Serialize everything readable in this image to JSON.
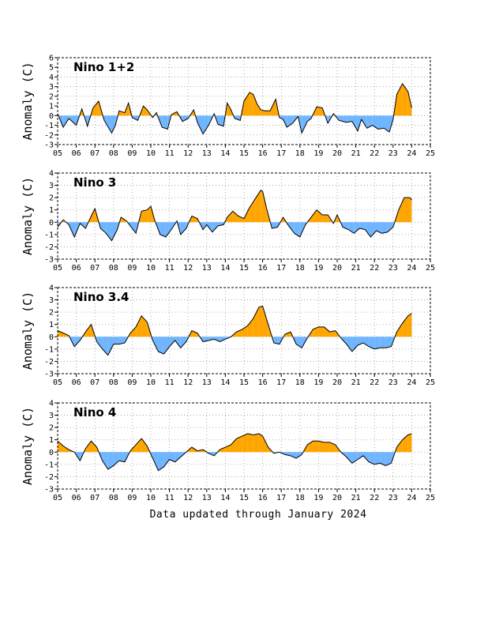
{
  "footer": "Data updated through January 2024",
  "colors": {
    "positive": "#ffa500",
    "negative": "#6fb5ff",
    "line": "#000000",
    "grid": "#999999"
  },
  "chart_data": [
    {
      "type": "area",
      "title": "Nino 1+2",
      "ylabel": "Anomaly (C)",
      "ylim": [
        -3,
        6
      ],
      "yticks": [
        "-3",
        "-2",
        "-1",
        "0",
        "1",
        "2",
        "3",
        "4",
        "5",
        "6"
      ],
      "xlim": [
        2005,
        2025
      ],
      "xticks": [
        "05",
        "06",
        "07",
        "08",
        "09",
        "10",
        "11",
        "12",
        "13",
        "14",
        "15",
        "16",
        "17",
        "18",
        "19",
        "20",
        "21",
        "22",
        "23",
        "24",
        "25"
      ],
      "x": [
        2005.0,
        2005.3,
        2005.6,
        2006.0,
        2006.3,
        2006.6,
        2006.9,
        2007.2,
        2007.5,
        2007.9,
        2008.1,
        2008.3,
        2008.6,
        2008.8,
        2009.0,
        2009.3,
        2009.6,
        2009.8,
        2010.1,
        2010.3,
        2010.6,
        2010.9,
        2011.1,
        2011.4,
        2011.7,
        2012.0,
        2012.3,
        2012.5,
        2012.8,
        2013.1,
        2013.4,
        2013.6,
        2013.9,
        2014.1,
        2014.3,
        2014.5,
        2014.8,
        2015.0,
        2015.3,
        2015.5,
        2015.7,
        2015.9,
        2016.1,
        2016.4,
        2016.7,
        2016.9,
        2017.1,
        2017.3,
        2017.6,
        2017.9,
        2018.1,
        2018.4,
        2018.6,
        2018.9,
        2019.2,
        2019.5,
        2019.8,
        2020.1,
        2020.3,
        2020.5,
        2020.8,
        2021.1,
        2021.3,
        2021.6,
        2021.9,
        2022.2,
        2022.5,
        2022.8,
        2023.0,
        2023.2,
        2023.5,
        2023.8,
        2024.0
      ],
      "values": [
        0.2,
        -1.2,
        -0.3,
        -1.0,
        0.7,
        -1.1,
        0.8,
        1.5,
        -0.5,
        -1.8,
        -1.0,
        0.5,
        0.3,
        1.3,
        -0.2,
        -0.5,
        1.0,
        0.6,
        -0.2,
        0.3,
        -1.2,
        -1.4,
        0.1,
        0.4,
        -0.6,
        -0.3,
        0.6,
        -0.7,
        -1.9,
        -1.0,
        0.2,
        -0.9,
        -1.1,
        1.3,
        0.6,
        -0.3,
        -0.5,
        1.5,
        2.4,
        2.2,
        1.2,
        0.6,
        0.5,
        0.5,
        1.7,
        -0.2,
        -0.4,
        -1.2,
        -0.8,
        -0.1,
        -1.8,
        -0.6,
        -0.3,
        0.9,
        0.8,
        -0.8,
        0.2,
        -0.5,
        -0.6,
        -0.7,
        -0.6,
        -1.6,
        -0.4,
        -1.3,
        -1.0,
        -1.4,
        -1.3,
        -1.7,
        -0.4,
        2.2,
        3.3,
        2.5,
        0.8
      ]
    },
    {
      "type": "area",
      "title": "Nino 3",
      "ylabel": "Anomaly (C)",
      "ylim": [
        -3,
        4
      ],
      "yticks": [
        "-3",
        "-2",
        "-1",
        "0",
        "1",
        "2",
        "3",
        "4"
      ],
      "xlim": [
        2005,
        2025
      ],
      "xticks": [
        "05",
        "06",
        "07",
        "08",
        "09",
        "10",
        "11",
        "12",
        "13",
        "14",
        "15",
        "16",
        "17",
        "18",
        "19",
        "20",
        "21",
        "22",
        "23",
        "24",
        "25"
      ],
      "x": [
        2005.0,
        2005.3,
        2005.6,
        2005.9,
        2006.2,
        2006.5,
        2006.8,
        2007.0,
        2007.3,
        2007.6,
        2007.9,
        2008.2,
        2008.4,
        2008.7,
        2008.9,
        2009.2,
        2009.5,
        2009.8,
        2010.0,
        2010.2,
        2010.5,
        2010.8,
        2011.1,
        2011.4,
        2011.6,
        2011.9,
        2012.2,
        2012.5,
        2012.8,
        2013.0,
        2013.3,
        2013.6,
        2013.9,
        2014.1,
        2014.4,
        2014.7,
        2015.0,
        2015.3,
        2015.6,
        2015.9,
        2016.0,
        2016.2,
        2016.5,
        2016.8,
        2017.1,
        2017.4,
        2017.7,
        2018.0,
        2018.3,
        2018.6,
        2018.9,
        2019.2,
        2019.5,
        2019.8,
        2020.0,
        2020.3,
        2020.6,
        2020.9,
        2021.2,
        2021.5,
        2021.8,
        2022.1,
        2022.4,
        2022.7,
        2023.0,
        2023.3,
        2023.6,
        2023.9,
        2024.0
      ],
      "values": [
        -0.4,
        0.2,
        -0.2,
        -1.2,
        -0.1,
        -0.5,
        0.5,
        1.1,
        -0.5,
        -0.9,
        -1.5,
        -0.6,
        0.4,
        0.1,
        -0.3,
        -0.9,
        0.9,
        1.0,
        1.3,
        0.2,
        -1.0,
        -1.2,
        -0.6,
        0.1,
        -1.0,
        -0.5,
        0.5,
        0.3,
        -0.6,
        -0.2,
        -0.8,
        -0.3,
        -0.2,
        0.4,
        0.9,
        0.5,
        0.3,
        1.2,
        1.9,
        2.6,
        2.5,
        1.2,
        -0.5,
        -0.4,
        0.4,
        -0.3,
        -0.9,
        -1.2,
        -0.2,
        0.4,
        1.0,
        0.6,
        0.6,
        -0.1,
        0.6,
        -0.4,
        -0.6,
        -0.9,
        -0.5,
        -0.6,
        -1.2,
        -0.7,
        -0.9,
        -0.8,
        -0.4,
        1.0,
        2.0,
        2.0,
        1.8
      ]
    },
    {
      "type": "area",
      "title": "Nino 3.4",
      "ylabel": "Anomaly (C)",
      "ylim": [
        -3,
        4
      ],
      "yticks": [
        "-3",
        "-2",
        "-1",
        "0",
        "1",
        "2",
        "3",
        "4"
      ],
      "xlim": [
        2005,
        2025
      ],
      "xticks": [
        "05",
        "06",
        "07",
        "08",
        "09",
        "10",
        "11",
        "12",
        "13",
        "14",
        "15",
        "16",
        "17",
        "18",
        "19",
        "20",
        "21",
        "22",
        "23",
        "24",
        "25"
      ],
      "x": [
        2005.0,
        2005.3,
        2005.6,
        2005.9,
        2006.2,
        2006.5,
        2006.8,
        2007.1,
        2007.4,
        2007.7,
        2008.0,
        2008.3,
        2008.6,
        2008.9,
        2009.2,
        2009.5,
        2009.8,
        2010.1,
        2010.4,
        2010.7,
        2011.0,
        2011.3,
        2011.6,
        2011.9,
        2012.2,
        2012.5,
        2012.8,
        2013.1,
        2013.4,
        2013.7,
        2014.0,
        2014.3,
        2014.6,
        2014.9,
        2015.2,
        2015.5,
        2015.8,
        2016.0,
        2016.3,
        2016.6,
        2016.9,
        2017.2,
        2017.5,
        2017.8,
        2018.1,
        2018.4,
        2018.7,
        2019.0,
        2019.3,
        2019.6,
        2019.9,
        2020.2,
        2020.5,
        2020.8,
        2021.1,
        2021.4,
        2021.7,
        2022.0,
        2022.3,
        2022.6,
        2022.9,
        2023.2,
        2023.5,
        2023.8,
        2024.0
      ],
      "values": [
        0.5,
        0.3,
        0.1,
        -0.8,
        -0.3,
        0.4,
        1.0,
        -0.4,
        -1.0,
        -1.5,
        -0.6,
        -0.6,
        -0.5,
        0.3,
        0.8,
        1.7,
        1.2,
        -0.3,
        -1.2,
        -1.4,
        -0.8,
        -0.3,
        -0.9,
        -0.4,
        0.5,
        0.3,
        -0.4,
        -0.3,
        -0.2,
        -0.4,
        -0.2,
        0.0,
        0.4,
        0.6,
        0.9,
        1.5,
        2.4,
        2.5,
        1.0,
        -0.5,
        -0.6,
        0.2,
        0.4,
        -0.6,
        -0.9,
        -0.1,
        0.6,
        0.8,
        0.8,
        0.4,
        0.5,
        -0.1,
        -0.6,
        -1.2,
        -0.7,
        -0.5,
        -0.8,
        -1.0,
        -0.9,
        -0.9,
        -0.8,
        0.4,
        1.1,
        1.7,
        1.9
      ]
    },
    {
      "type": "area",
      "title": "Nino 4",
      "ylabel": "Anomaly (C)",
      "ylim": [
        -3,
        4
      ],
      "yticks": [
        "-3",
        "-2",
        "-1",
        "0",
        "1",
        "2",
        "3",
        "4"
      ],
      "xlim": [
        2005,
        2025
      ],
      "xticks": [
        "05",
        "06",
        "07",
        "08",
        "09",
        "10",
        "11",
        "12",
        "13",
        "14",
        "15",
        "16",
        "17",
        "18",
        "19",
        "20",
        "21",
        "22",
        "23",
        "24",
        "25"
      ],
      "x": [
        2005.0,
        2005.3,
        2005.6,
        2005.9,
        2006.2,
        2006.5,
        2006.8,
        2007.1,
        2007.4,
        2007.7,
        2008.0,
        2008.3,
        2008.6,
        2008.9,
        2009.2,
        2009.5,
        2009.8,
        2010.1,
        2010.4,
        2010.7,
        2011.0,
        2011.3,
        2011.6,
        2011.9,
        2012.2,
        2012.5,
        2012.8,
        2013.1,
        2013.4,
        2013.7,
        2014.0,
        2014.3,
        2014.6,
        2014.9,
        2015.2,
        2015.5,
        2015.8,
        2016.0,
        2016.3,
        2016.6,
        2016.9,
        2017.2,
        2017.5,
        2017.8,
        2018.1,
        2018.4,
        2018.7,
        2019.0,
        2019.3,
        2019.6,
        2019.9,
        2020.2,
        2020.5,
        2020.8,
        2021.1,
        2021.4,
        2021.7,
        2022.0,
        2022.3,
        2022.6,
        2022.9,
        2023.2,
        2023.5,
        2023.8,
        2024.0
      ],
      "values": [
        0.9,
        0.5,
        0.2,
        0.0,
        -0.7,
        0.3,
        0.9,
        0.4,
        -0.7,
        -1.4,
        -1.1,
        -0.7,
        -0.8,
        0.1,
        0.6,
        1.1,
        0.5,
        -0.5,
        -1.5,
        -1.2,
        -0.6,
        -0.8,
        -0.4,
        0.0,
        0.4,
        0.1,
        0.2,
        -0.1,
        -0.3,
        0.2,
        0.4,
        0.6,
        1.1,
        1.3,
        1.5,
        1.4,
        1.5,
        1.3,
        0.4,
        -0.1,
        0.0,
        -0.2,
        -0.3,
        -0.5,
        -0.2,
        0.6,
        0.9,
        0.9,
        0.8,
        0.8,
        0.6,
        0.0,
        -0.4,
        -0.9,
        -0.6,
        -0.3,
        -0.8,
        -1.0,
        -0.9,
        -1.1,
        -0.9,
        0.4,
        1.0,
        1.4,
        1.5
      ]
    }
  ]
}
